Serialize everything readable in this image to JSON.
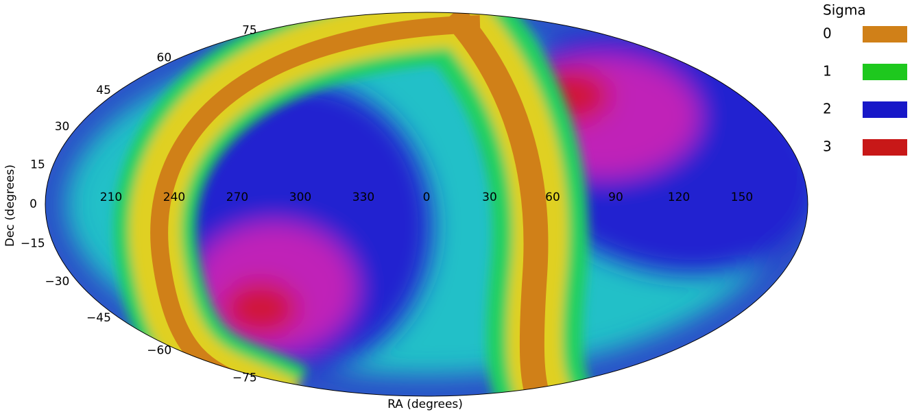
{
  "chart_data": {
    "type": "mollweide",
    "xlabel": "RA (degrees)",
    "ylabel": "Dec (degrees)",
    "center_ra": 0,
    "xticks": [
      210,
      240,
      270,
      300,
      330,
      0,
      30,
      60,
      90,
      120,
      150
    ],
    "yticks": [
      75,
      60,
      45,
      30,
      15,
      0,
      {
        "value": -15,
        "label": "−15"
      },
      {
        "value": -30,
        "label": "−30"
      },
      {
        "value": -45,
        "label": "−45"
      },
      {
        "value": -60,
        "label": "−60"
      },
      {
        "value": -75,
        "label": "−75"
      }
    ],
    "legend_title": "Sigma",
    "series": [
      {
        "name": "0",
        "color": "#d08018"
      },
      {
        "name": "1",
        "color": "#1ec81e"
      },
      {
        "name": "2",
        "color": "#1818c8"
      },
      {
        "name": "3",
        "color": "#c81818"
      }
    ]
  }
}
